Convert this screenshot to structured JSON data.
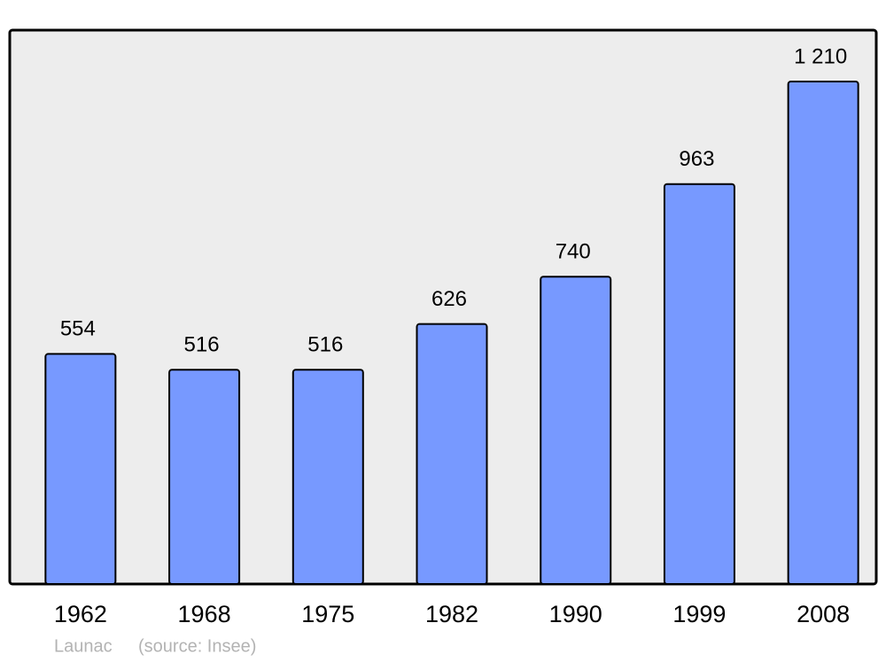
{
  "chart_data": {
    "type": "bar",
    "categories": [
      "1962",
      "1968",
      "1975",
      "1982",
      "1990",
      "1999",
      "2008"
    ],
    "values": [
      554,
      516,
      516,
      626,
      740,
      963,
      1210
    ],
    "value_labels": [
      "554",
      "516",
      "516",
      "626",
      "740",
      "963",
      "1 210"
    ],
    "color": "#7799ff",
    "caption": "Launac",
    "source": "(source: Insee)"
  }
}
